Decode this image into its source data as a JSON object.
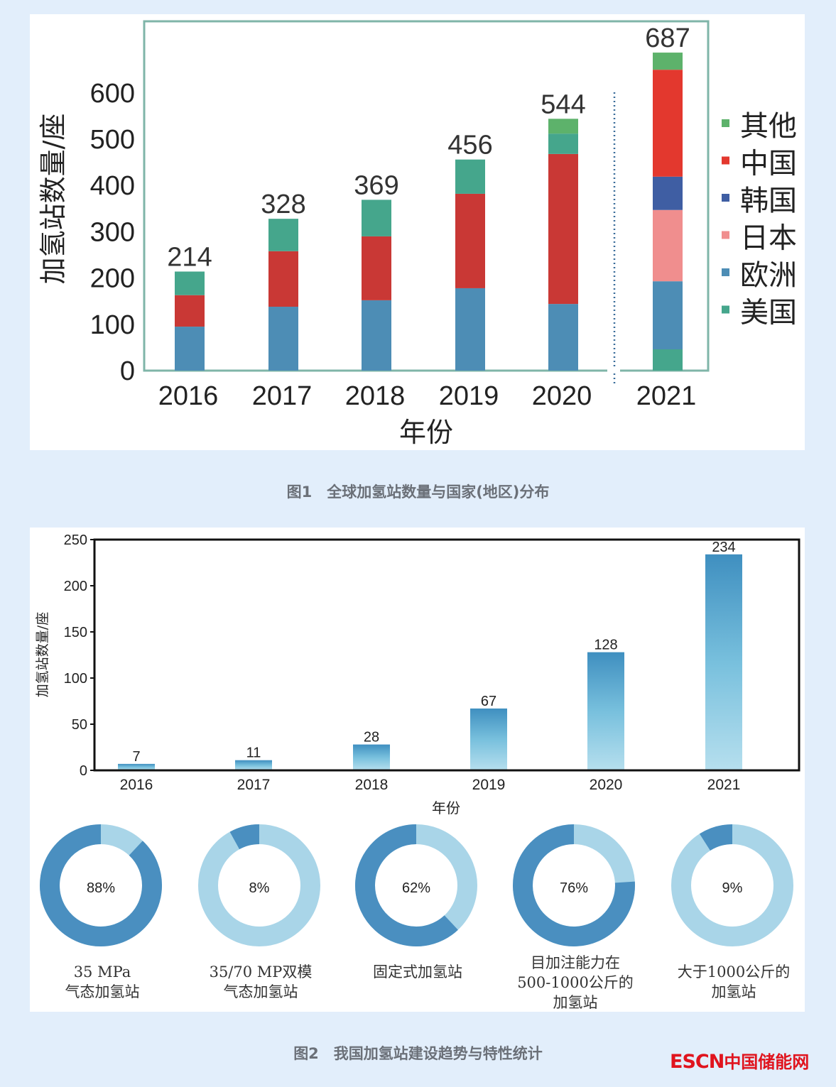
{
  "chart_data": [
    {
      "type": "bar",
      "stacked": true,
      "title": "图1　全球加氢站数量与国家(地区)分布",
      "xlabel": "年份",
      "ylabel": "加氢站数量/座",
      "ylim": [
        0,
        700
      ],
      "yticks": [
        0,
        100,
        200,
        300,
        400,
        500,
        600
      ],
      "categories": [
        "2016",
        "2017",
        "2018",
        "2019",
        "2020",
        "2021"
      ],
      "totals": [
        214,
        328,
        369,
        456,
        544,
        687
      ],
      "legend_position": "right",
      "legend": [
        {
          "name": "其他",
          "color": "#5db26b"
        },
        {
          "name": "中国",
          "color": "#e3382e"
        },
        {
          "name": "韩国",
          "color": "#3f5ea3"
        },
        {
          "name": "日本",
          "color": "#f08e8e"
        },
        {
          "name": "欧洲",
          "color": "#4d8db5"
        },
        {
          "name": "美国",
          "color": "#45a68c"
        }
      ],
      "bars": [
        {
          "segments": [
            {
              "value": 95,
              "color": "#4d8db5"
            },
            {
              "value": 68,
              "color": "#c93835"
            },
            {
              "value": 51,
              "color": "#45a68c"
            }
          ]
        },
        {
          "segments": [
            {
              "value": 138,
              "color": "#4d8db5"
            },
            {
              "value": 120,
              "color": "#c93835"
            },
            {
              "value": 70,
              "color": "#45a68c"
            }
          ]
        },
        {
          "segments": [
            {
              "value": 152,
              "color": "#4d8db5"
            },
            {
              "value": 138,
              "color": "#c93835"
            },
            {
              "value": 79,
              "color": "#45a68c"
            }
          ]
        },
        {
          "segments": [
            {
              "value": 178,
              "color": "#4d8db5"
            },
            {
              "value": 204,
              "color": "#c93835"
            },
            {
              "value": 74,
              "color": "#45a68c"
            }
          ]
        },
        {
          "segments": [
            {
              "value": 144,
              "color": "#4d8db5"
            },
            {
              "value": 324,
              "color": "#c93835"
            },
            {
              "value": 44,
              "color": "#45a68c"
            },
            {
              "value": 32,
              "color": "#5db26b"
            }
          ]
        },
        {
          "segments": [
            {
              "value": 46,
              "color": "#45a68c"
            },
            {
              "value": 147,
              "color": "#4d8db5"
            },
            {
              "value": 154,
              "color": "#f08e8e"
            },
            {
              "value": 72,
              "color": "#3f5ea3"
            },
            {
              "value": 231,
              "color": "#e3382e"
            },
            {
              "value": 37,
              "color": "#5db26b"
            }
          ]
        }
      ]
    },
    {
      "type": "bar",
      "title": "图2　我国加氢站建设趋势与特性统计",
      "xlabel": "年份",
      "ylabel": "加氢站数量/座",
      "ylim": [
        0,
        250
      ],
      "yticks": [
        0,
        50,
        100,
        150,
        200,
        250
      ],
      "categories": [
        "2016",
        "2017",
        "2018",
        "2019",
        "2020",
        "2021"
      ],
      "values": [
        7,
        11,
        28,
        67,
        128,
        234
      ]
    },
    {
      "type": "pie",
      "donut": true,
      "colors": {
        "share": "#4a8fc0",
        "rest": "#a9d5e8"
      },
      "items": [
        {
          "label": [
            "35 MPa",
            "气态加氢站"
          ],
          "percent": 88
        },
        {
          "label": [
            "35/70 MP双模",
            "气态加氢站"
          ],
          "percent": 8
        },
        {
          "label": [
            "固定式加氢站"
          ],
          "percent": 62
        },
        {
          "label": [
            "目加注能力在",
            "500-1000公斤的",
            "加氢站"
          ],
          "percent": 76
        },
        {
          "label": [
            "大于1000公斤的",
            "加氢站"
          ],
          "percent": 9
        }
      ]
    }
  ],
  "captions": {
    "fig1": "图1　全球加氢站数量与国家(地区)分布",
    "fig2": "图2　我国加氢站建设趋势与特性统计"
  },
  "logo": {
    "latin": "ESCN",
    "cn": "中国储能网"
  }
}
